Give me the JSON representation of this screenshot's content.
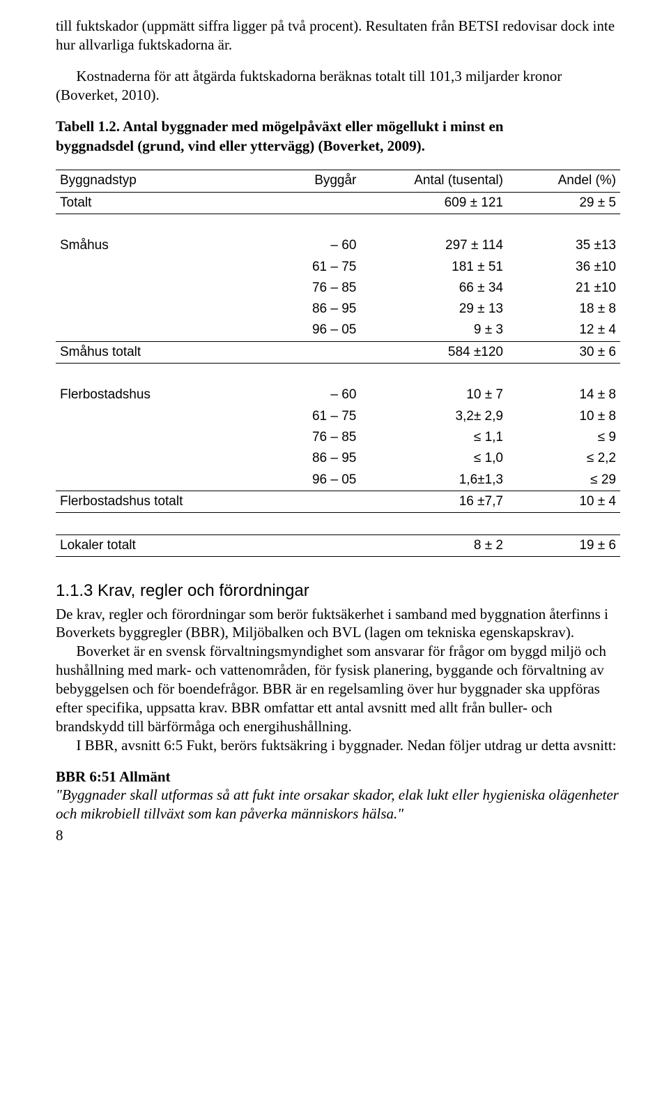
{
  "para1": "till fuktskador (uppmätt siffra ligger på två procent). Resultaten från BETSI redovisar dock inte hur allvarliga fuktskadorna är.",
  "para2": "Kostnaderna för att åtgärda fuktskadorna beräknas totalt till 101,3 miljarder kronor (Boverket, 2010).",
  "table_caption_line1": "Tabell 1.2. Antal byggnader med mögelpåväxt eller mögellukt i minst en",
  "table_caption_line2": "byggnadsdel (grund, vind eller yttervägg) (Boverket, 2009).",
  "table": {
    "headers": {
      "c1": "Byggnadstyp",
      "c2": "Byggår",
      "c3": "Antal (tusental)",
      "c4": "Andel (%)"
    },
    "rows": [
      {
        "type": "data",
        "c1": "Totalt",
        "c2": "",
        "c3": "609 ± 121",
        "c4": "29 ± 5",
        "divider": true
      },
      {
        "type": "spacer"
      },
      {
        "type": "data",
        "c1": "Småhus",
        "c2": "– 60",
        "c3": "297 ± 114",
        "c4": "35 ±13"
      },
      {
        "type": "data",
        "c1": "",
        "c2": "61 – 75",
        "c3": "181 ±  51",
        "c4": "36 ±10"
      },
      {
        "type": "data",
        "c1": "",
        "c2": "76 – 85",
        "c3": "66 ±  34",
        "c4": "21 ±10"
      },
      {
        "type": "data",
        "c1": "",
        "c2": "86 – 95",
        "c3": "29 ±  13",
        "c4": "18 ± 8"
      },
      {
        "type": "data",
        "c1": "",
        "c2": "96 – 05",
        "c3": "9 ±   3",
        "c4": "12 ± 4",
        "divider": true
      },
      {
        "type": "data",
        "c1": "Småhus totalt",
        "c2": "",
        "c3": "584 ±120",
        "c4": "30 ± 6",
        "divider": true
      },
      {
        "type": "spacer"
      },
      {
        "type": "data",
        "c1": "Flerbostadshus",
        "c2": "– 60",
        "c3": "10 ±  7",
        "c4": "14 ± 8"
      },
      {
        "type": "data",
        "c1": "",
        "c2": "61 – 75",
        "c3": "3,2± 2,9",
        "c4": "10 ± 8"
      },
      {
        "type": "data",
        "c1": "",
        "c2": "76 – 85",
        "c3": "≤  1,1",
        "c4": "≤  9"
      },
      {
        "type": "data",
        "c1": "",
        "c2": "86 – 95",
        "c3": "≤  1,0",
        "c4": "≤  2,2"
      },
      {
        "type": "data",
        "c1": "",
        "c2": "96 – 05",
        "c3": "1,6±1,3",
        "c4": "≤  29",
        "divider": true
      },
      {
        "type": "data",
        "c1": "Flerbostadshus totalt",
        "c2": "",
        "c3": "16 ±7,7",
        "c4": "10 ± 4",
        "divider": true
      },
      {
        "type": "spacer",
        "divider": true
      },
      {
        "type": "data",
        "c1": "Lokaler totalt",
        "c2": "",
        "c3": "8 ±  2",
        "c4": "19 ± 6",
        "divider": true
      }
    ],
    "col_widths": [
      "34%",
      "20%",
      "26%",
      "20%"
    ]
  },
  "section_head": "1.1.3 Krav, regler och förordningar",
  "para3": "De krav, regler och förordningar som berör fuktsäkerhet i samband med byggnation återfinns i Boverkets byggregler (BBR), Miljöbalken och BVL (lagen om tekniska egenskapskrav).",
  "para4": "Boverket är en svensk förvaltningsmyndighet som ansvarar för frågor om byggd miljö och hushållning med mark- och vattenområden, för fysisk planering, byggande och förvaltning av bebyggelsen och för boendefrågor. BBR är en regelsamling över hur byggnader ska uppföras efter specifika, uppsatta krav. BBR omfattar ett antal avsnitt med allt från buller- och brandskydd till bärförmåga och energihushållning.",
  "para5": "I BBR, avsnitt 6:5 Fukt, berörs fuktsäkring i byggnader. Nedan följer utdrag ur detta avsnitt:",
  "bbr_head": "BBR 6:51 Allmänt",
  "bbr_quote": "\"Byggnader skall utformas så att fukt inte orsakar skador, elak lukt eller hygieniska olägenheter och mikrobiell tillväxt som kan påverka människors hälsa.\"",
  "page_number": "8"
}
